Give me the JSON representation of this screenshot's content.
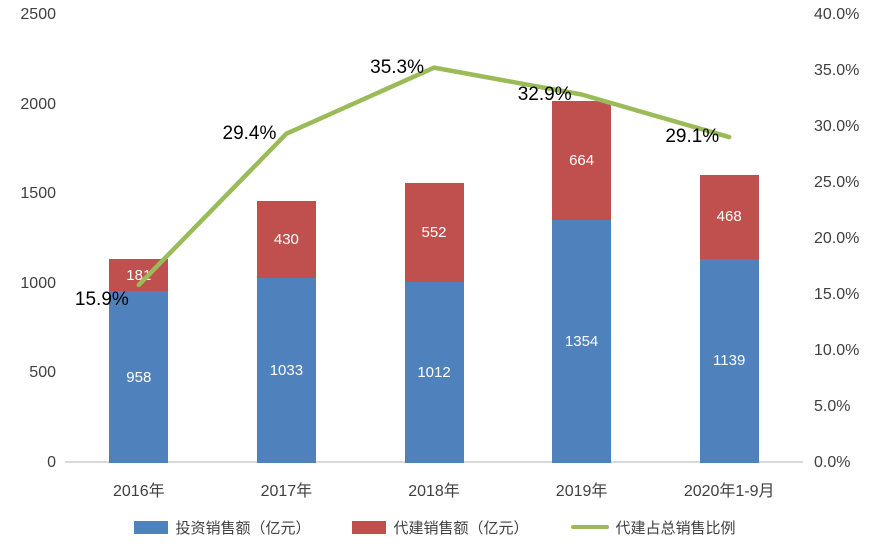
{
  "chart_data": {
    "type": "bar",
    "subtype": "stacked-bar-with-line-combo",
    "title": "",
    "categories": [
      "2016年",
      "2017年",
      "2018年",
      "2019年",
      "2020年1-9月"
    ],
    "series": [
      {
        "name": "投资销售额（亿元）",
        "type": "bar",
        "stack": "total",
        "axis": "left",
        "color": "#4F81BD",
        "values": [
          958,
          1033,
          1012,
          1354,
          1139
        ],
        "value_labels": [
          "958",
          "1033",
          "1012",
          "1354",
          "1139"
        ]
      },
      {
        "name": "代建销售额（亿元）",
        "type": "bar",
        "stack": "total",
        "axis": "left",
        "color": "#C0504D",
        "values": [
          181,
          430,
          552,
          664,
          468
        ],
        "value_labels": [
          "181",
          "430",
          "552",
          "664",
          "468"
        ]
      },
      {
        "name": "代建占总销售比例",
        "type": "line",
        "axis": "right",
        "color": "#9BBB59",
        "values": [
          15.9,
          29.4,
          35.3,
          32.9,
          29.1
        ],
        "point_labels": [
          "15.9%",
          "29.4%",
          "35.3%",
          "32.9%",
          "29.1%"
        ]
      }
    ],
    "left_axis": {
      "min": 0,
      "max": 2500,
      "step": 500,
      "ticks": [
        "0",
        "500",
        "1000",
        "1500",
        "2000",
        "2500"
      ]
    },
    "right_axis": {
      "min": 0,
      "max": 40,
      "step": 5,
      "ticks": [
        "0.0%",
        "5.0%",
        "10.0%",
        "15.0%",
        "20.0%",
        "25.0%",
        "30.0%",
        "35.0%",
        "40.0%"
      ]
    },
    "grid": false,
    "legend_position": "bottom",
    "colors": {
      "bar_blue": "#4F81BD",
      "bar_red": "#C0504D",
      "line_green": "#9BBB59",
      "axis_text": "#404040",
      "axis_line": "#D9D9D9",
      "point_label_text": "#000000",
      "bar_label_text": "#FFFFFF"
    }
  }
}
